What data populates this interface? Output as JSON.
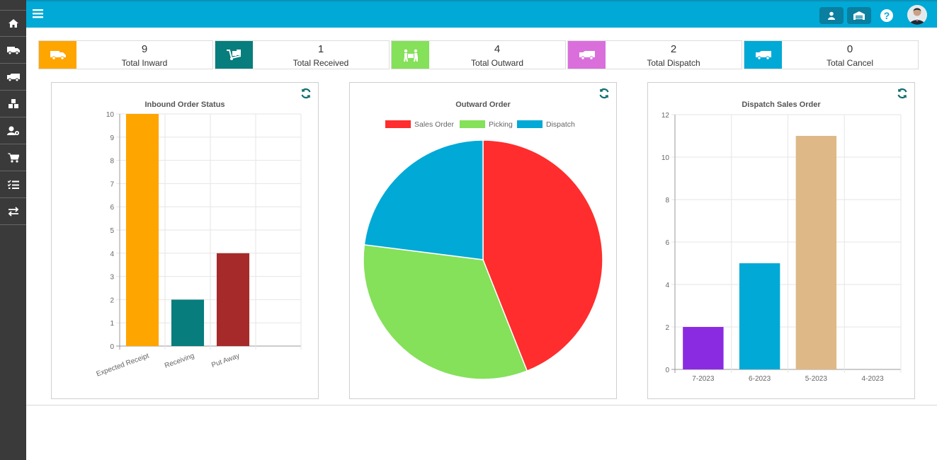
{
  "sidebar": {
    "items": [
      {
        "icon": "home-icon"
      },
      {
        "icon": "truck-icon"
      },
      {
        "icon": "delivery-truck-icon"
      },
      {
        "icon": "boxes-icon"
      },
      {
        "icon": "user-cog-icon"
      },
      {
        "icon": "cart-icon"
      },
      {
        "icon": "checklist-icon"
      },
      {
        "icon": "transfer-icon"
      }
    ]
  },
  "topbar": {
    "menu_icon": "hamburger-icon",
    "user_icon": "user-icon",
    "warehouse_icon": "warehouse-icon",
    "help_icon": "help-icon",
    "avatar": "avatar"
  },
  "summary_cards": [
    {
      "value": "9",
      "label": "Total Inward",
      "color": "#ffa500",
      "icon": "truck-icon"
    },
    {
      "value": "1",
      "label": "Total Received",
      "color": "#077d7d",
      "icon": "dolly-icon"
    },
    {
      "value": "4",
      "label": "Total Outward",
      "color": "#85e05a",
      "icon": "people-carry-icon"
    },
    {
      "value": "2",
      "label": "Total Dispatch",
      "color": "#da6fdc",
      "icon": "truck-icon"
    },
    {
      "value": "0",
      "label": "Total Cancel",
      "color": "#00a9d6",
      "icon": "truck-icon"
    }
  ],
  "chart_data": [
    {
      "type": "bar",
      "title": "Inbound Order Status",
      "categories": [
        "Expected Receipt",
        "Receiving",
        "Put Away",
        ""
      ],
      "values": [
        10,
        2,
        4,
        0
      ],
      "colors": [
        "#ffa500",
        "#077d7d",
        "#a62a2a",
        "#999999"
      ],
      "ylim": [
        0,
        10
      ],
      "yticks": [
        "0",
        "1",
        "2",
        "3",
        "4",
        "5",
        "6",
        "7",
        "8",
        "9",
        "10"
      ],
      "grid": true
    },
    {
      "type": "pie",
      "title": "Outward Order",
      "labels": [
        "Sales Order",
        "Picking",
        "Dispatch"
      ],
      "values": [
        44,
        33,
        23
      ],
      "colors": [
        "#ff2d2d",
        "#85e05a",
        "#00a9d6"
      ],
      "legend": "top"
    },
    {
      "type": "bar",
      "title": "Dispatch Sales Order",
      "categories": [
        "7-2023",
        "6-2023",
        "5-2023",
        "4-2023"
      ],
      "values": [
        2,
        5,
        11,
        0
      ],
      "colors": [
        "#8a2be2",
        "#00a9d6",
        "#deb887",
        "#999999"
      ],
      "ylim": [
        0,
        12
      ],
      "yticks": [
        "0",
        "2",
        "4",
        "6",
        "8",
        "10",
        "12"
      ],
      "grid": true
    }
  ]
}
